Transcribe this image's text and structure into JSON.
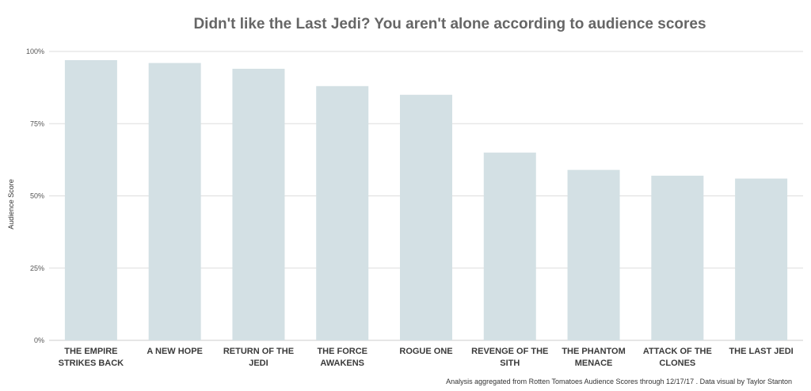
{
  "chart_data": {
    "type": "bar",
    "title": "Didn't like the Last Jedi? You aren't alone according to audience scores",
    "xlabel": "",
    "ylabel": "Audience Score",
    "ylim": [
      0,
      100
    ],
    "yticks": [
      0,
      25,
      50,
      75,
      100
    ],
    "ytick_labels": [
      "0%",
      "25%",
      "50%",
      "75%",
      "100%"
    ],
    "grid": true,
    "categories": [
      [
        "THE EMPIRE",
        "STRIKES BACK"
      ],
      [
        "A NEW HOPE"
      ],
      [
        "RETURN OF THE",
        "JEDI"
      ],
      [
        "THE FORCE",
        "AWAKENS"
      ],
      [
        "ROGUE ONE"
      ],
      [
        "REVENGE OF THE",
        "SITH"
      ],
      [
        "THE PHANTOM",
        "MENACE"
      ],
      [
        "ATTACK OF THE",
        "CLONES"
      ],
      [
        "THE LAST JEDI"
      ]
    ],
    "values": [
      97,
      96,
      94,
      88,
      85,
      65,
      59,
      57,
      56
    ],
    "bar_color": "#d3e0e4",
    "grid_color": "#dddddd",
    "footer": "Analysis aggregated from Rotten Tomatoes Audience Scores through 12/17/17 . Data visual by Taylor Stanton"
  }
}
